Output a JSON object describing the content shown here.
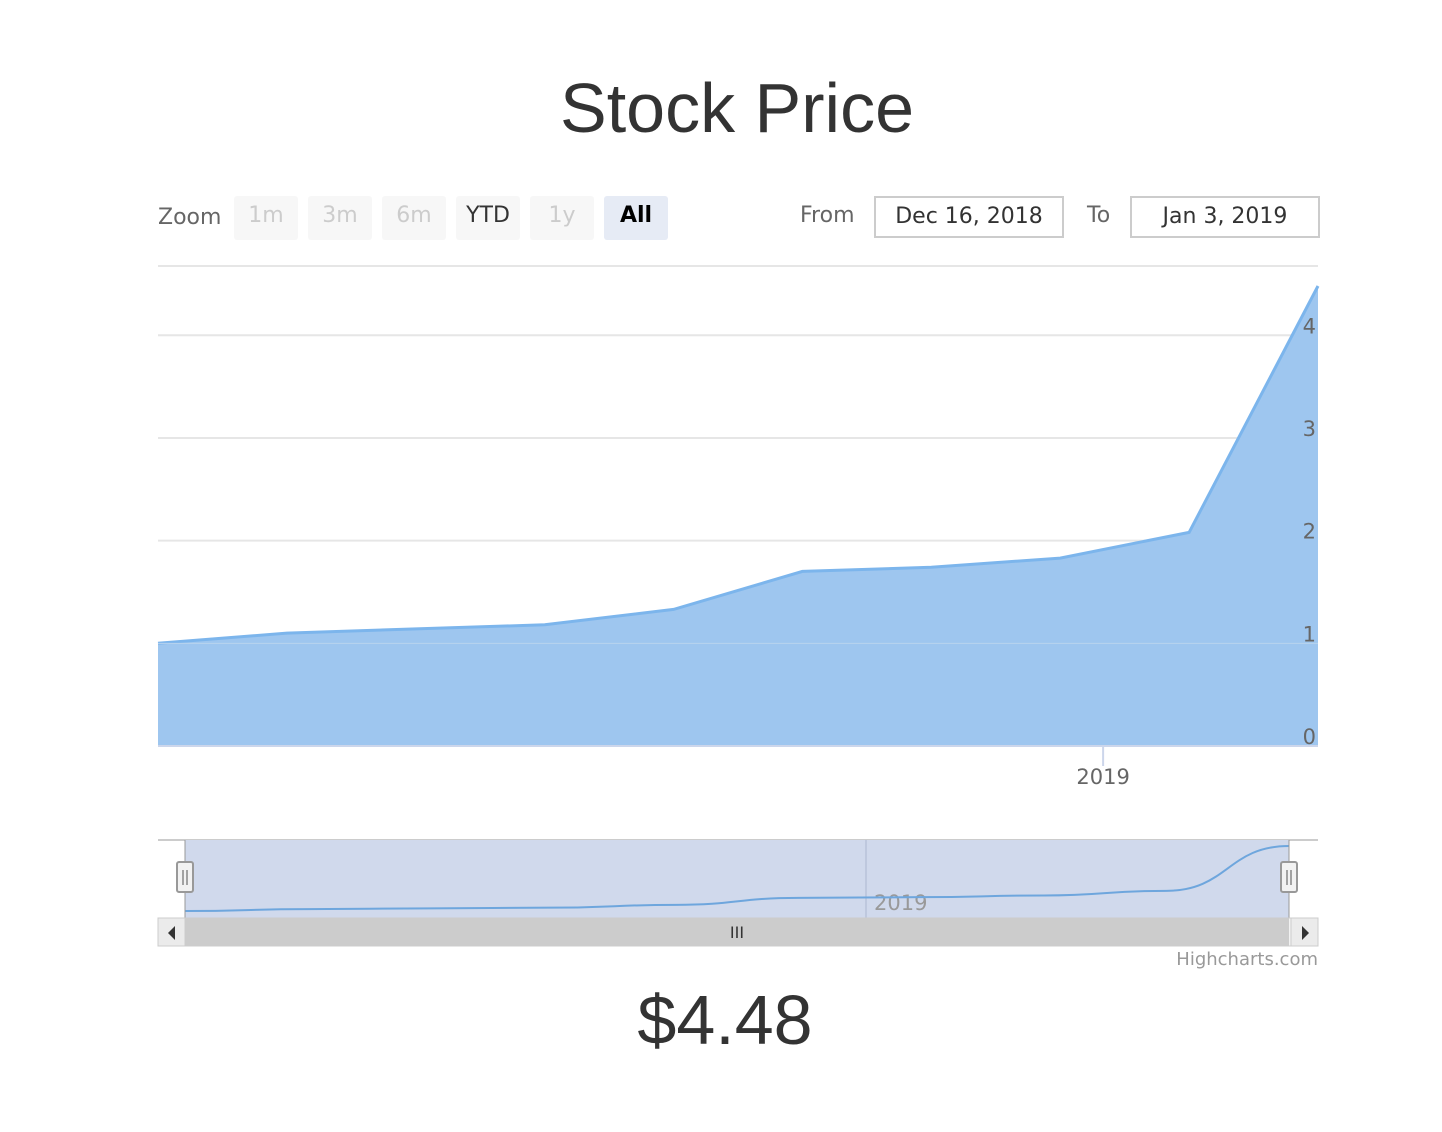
{
  "title": "Stock Price",
  "range_selector": {
    "zoom_label": "Zoom",
    "buttons": [
      {
        "label": "1m",
        "state": "disabled"
      },
      {
        "label": "3m",
        "state": "disabled"
      },
      {
        "label": "6m",
        "state": "disabled"
      },
      {
        "label": "YTD",
        "state": "enabled"
      },
      {
        "label": "1y",
        "state": "disabled"
      },
      {
        "label": "All",
        "state": "selected"
      }
    ],
    "from_label": "From",
    "from_value": "Dec 16, 2018",
    "to_label": "To",
    "to_value": "Jan 3, 2019"
  },
  "chart_data": {
    "type": "area",
    "title": "Stock Price",
    "x": [
      "2018-12-16",
      "2018-12-18",
      "2018-12-20",
      "2018-12-22",
      "2018-12-24",
      "2018-12-26",
      "2018-12-28",
      "2018-12-30",
      "2019-01-01",
      "2019-01-03"
    ],
    "series": [
      {
        "values": [
          1.0,
          1.1,
          1.14,
          1.18,
          1.33,
          1.7,
          1.74,
          1.83,
          2.08,
          4.48
        ]
      }
    ],
    "xlim": [
      "2018-12-16",
      "2019-01-03"
    ],
    "ylim": [
      0,
      4.48
    ],
    "y_ticks": [
      0,
      1,
      2,
      3,
      4
    ],
    "x_ticks": [
      "2019"
    ],
    "grid": true,
    "y_axis_side": "right",
    "color": "#7cb5ec",
    "fill_color": "#9ec6ef"
  },
  "navigator": {
    "x_tick": "2019"
  },
  "scrollbar": {
    "grip": "III"
  },
  "credits": "Highcharts.com",
  "price_display": "$4.48"
}
